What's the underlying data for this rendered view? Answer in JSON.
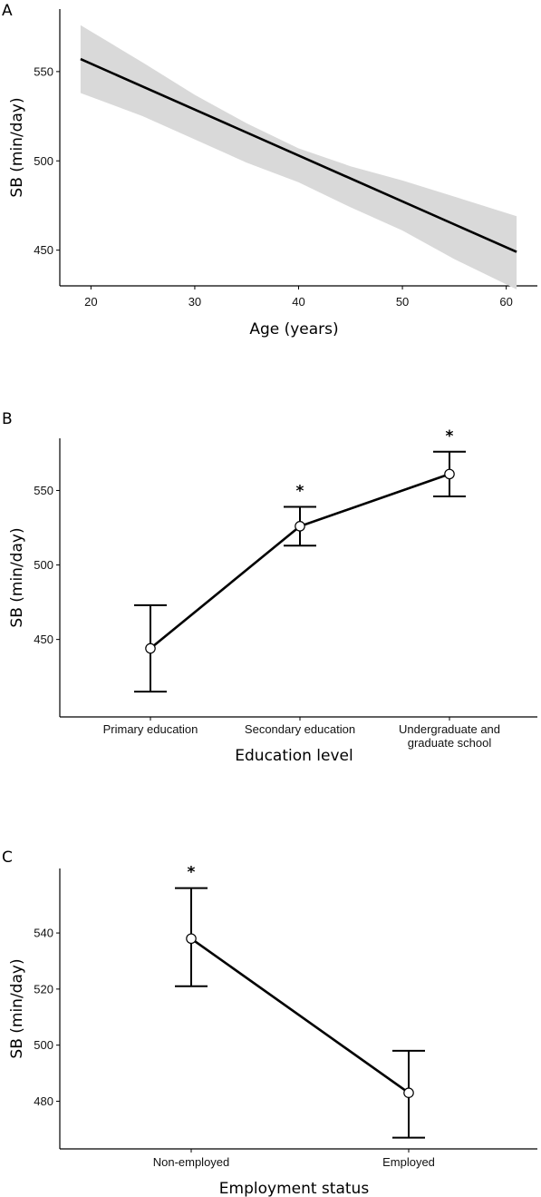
{
  "chart_data": [
    {
      "panel": "A",
      "type": "line",
      "xlabel": "Age (years)",
      "ylabel": "SB (min/day)",
      "xlim": [
        17,
        63
      ],
      "ylim": [
        430,
        585
      ],
      "xticks": [
        20,
        30,
        40,
        50,
        60
      ],
      "yticks": [
        450,
        500,
        550
      ],
      "grid": false,
      "series": [
        {
          "x": [
            19,
            61
          ],
          "y": [
            557,
            449
          ],
          "ci_lower": [
            538,
            428
          ],
          "ci_upper": [
            576,
            469
          ]
        }
      ],
      "band_x": [
        19,
        25,
        30,
        35,
        40,
        45,
        50,
        55,
        61
      ],
      "band_upper": [
        576,
        555,
        537,
        521,
        507,
        497,
        489,
        480,
        469
      ],
      "band_lower": [
        538,
        525,
        512,
        499,
        488,
        474,
        461,
        445,
        428
      ]
    },
    {
      "panel": "B",
      "type": "line",
      "xlabel": "Education level",
      "ylabel": "SB (min/day)",
      "categories": [
        "Primary education",
        "Secondary education",
        "Undergraduate and graduate school"
      ],
      "category_lines": [
        [
          "Primary education"
        ],
        [
          "Secondary education"
        ],
        [
          "Undergraduate and",
          "graduate school"
        ]
      ],
      "ylim": [
        398,
        585
      ],
      "yticks": [
        450,
        500,
        550
      ],
      "grid": false,
      "values": [
        444,
        526,
        561
      ],
      "ci_lower": [
        415,
        513,
        546
      ],
      "ci_upper": [
        473,
        539,
        576
      ],
      "significance": [
        "",
        "*",
        "*"
      ]
    },
    {
      "panel": "C",
      "type": "line",
      "xlabel": "Employment status",
      "ylabel": "SB (min/day)",
      "categories": [
        "Non-employed",
        "Employed"
      ],
      "category_lines": [
        [
          "Non-employed"
        ],
        [
          "Employed"
        ]
      ],
      "ylim": [
        463,
        563
      ],
      "yticks": [
        480,
        500,
        520,
        540
      ],
      "grid": false,
      "values": [
        538,
        483
      ],
      "ci_lower": [
        521,
        467
      ],
      "ci_upper": [
        556,
        498
      ],
      "significance": [
        "*",
        ""
      ]
    }
  ]
}
